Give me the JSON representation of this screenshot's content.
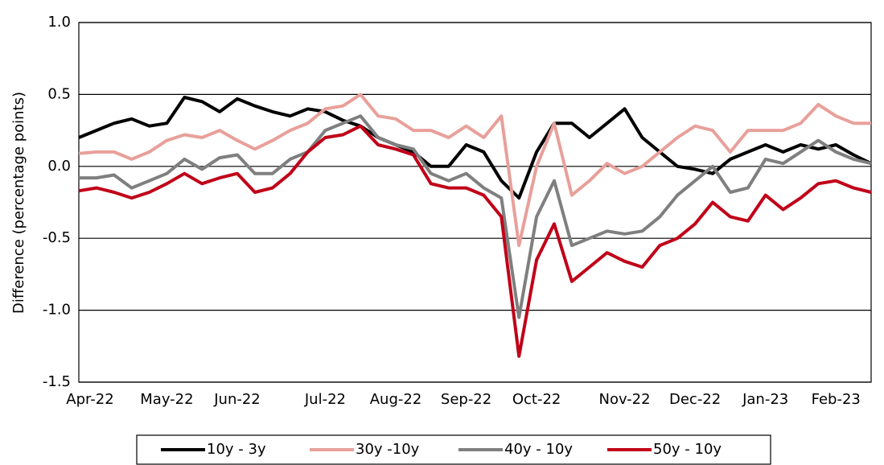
{
  "chart_data": {
    "type": "line",
    "y_label": "Difference (percentage points)",
    "categories": [
      "Apr-22",
      null,
      null,
      null,
      null,
      "May-22",
      null,
      null,
      null,
      "Jun-22",
      null,
      null,
      null,
      null,
      "Jul-22",
      null,
      null,
      null,
      "Aug-22",
      null,
      null,
      null,
      "Sep-22",
      null,
      null,
      null,
      "Oct-22",
      null,
      null,
      null,
      null,
      "Nov-22",
      null,
      null,
      null,
      "Dec-22",
      null,
      null,
      null,
      "Jan-23",
      null,
      null,
      null,
      "Feb-23",
      null,
      null
    ],
    "series": [
      {
        "name": "10y - 3y",
        "color": "#000000",
        "values": [
          0.2,
          0.25,
          0.3,
          0.33,
          0.28,
          0.3,
          0.48,
          0.45,
          0.38,
          0.47,
          0.42,
          0.38,
          0.35,
          0.4,
          0.38,
          0.32,
          0.28,
          0.2,
          0.15,
          0.1,
          0.0,
          0.0,
          0.15,
          0.1,
          -0.1,
          -0.22,
          0.1,
          0.3,
          0.3,
          0.2,
          0.3,
          0.4,
          0.2,
          0.1,
          0.0,
          -0.02,
          -0.05,
          0.05,
          0.1,
          0.15,
          0.1,
          0.15,
          0.12,
          0.15,
          0.08,
          0.02
        ]
      },
      {
        "name": "30y -10y",
        "color": "#e8a09a",
        "values": [
          0.09,
          0.1,
          0.1,
          0.05,
          0.1,
          0.18,
          0.22,
          0.2,
          0.25,
          0.18,
          0.12,
          0.18,
          0.25,
          0.3,
          0.4,
          0.42,
          0.5,
          0.35,
          0.33,
          0.25,
          0.25,
          0.2,
          0.28,
          0.2,
          0.35,
          -0.55,
          0.0,
          0.3,
          -0.2,
          -0.1,
          0.02,
          -0.05,
          0.0,
          0.1,
          0.2,
          0.28,
          0.25,
          0.1,
          0.25,
          0.25,
          0.25,
          0.3,
          0.43,
          0.35,
          0.3,
          0.3
        ]
      },
      {
        "name": "40y - 10y",
        "color": "#7f7f7f",
        "values": [
          -0.08,
          -0.08,
          -0.06,
          -0.15,
          -0.1,
          -0.05,
          0.05,
          -0.02,
          0.06,
          0.08,
          -0.05,
          -0.05,
          0.05,
          0.1,
          0.25,
          0.3,
          0.35,
          0.2,
          0.15,
          0.12,
          -0.05,
          -0.1,
          -0.05,
          -0.15,
          -0.22,
          -1.05,
          -0.35,
          -0.1,
          -0.55,
          -0.5,
          -0.45,
          -0.47,
          -0.45,
          -0.35,
          -0.2,
          -0.1,
          0.0,
          -0.18,
          -0.15,
          0.05,
          0.02,
          0.1,
          0.18,
          0.1,
          0.05,
          0.02
        ]
      },
      {
        "name": "50y - 10y",
        "color": "#c00018",
        "values": [
          -0.17,
          -0.15,
          -0.18,
          -0.22,
          -0.18,
          -0.12,
          -0.05,
          -0.12,
          -0.08,
          -0.05,
          -0.18,
          -0.15,
          -0.05,
          0.1,
          0.2,
          0.22,
          0.28,
          0.15,
          0.12,
          0.08,
          -0.12,
          -0.15,
          -0.15,
          -0.2,
          -0.35,
          -1.32,
          -0.65,
          -0.4,
          -0.8,
          -0.7,
          -0.6,
          -0.66,
          -0.7,
          -0.55,
          -0.5,
          -0.4,
          -0.25,
          -0.35,
          -0.38,
          -0.2,
          -0.3,
          -0.22,
          -0.12,
          -0.1,
          -0.15,
          -0.18
        ]
      }
    ],
    "ylim": [
      -1.5,
      1.0
    ],
    "yticks": [
      {
        "value": 1,
        "label": "1.0"
      },
      0.5,
      {
        "value": 0,
        "label": "0.0"
      },
      -0.5,
      {
        "value": -1,
        "label": "-1.0"
      },
      -1.5
    ],
    "grid": true,
    "legend": "bottom"
  }
}
